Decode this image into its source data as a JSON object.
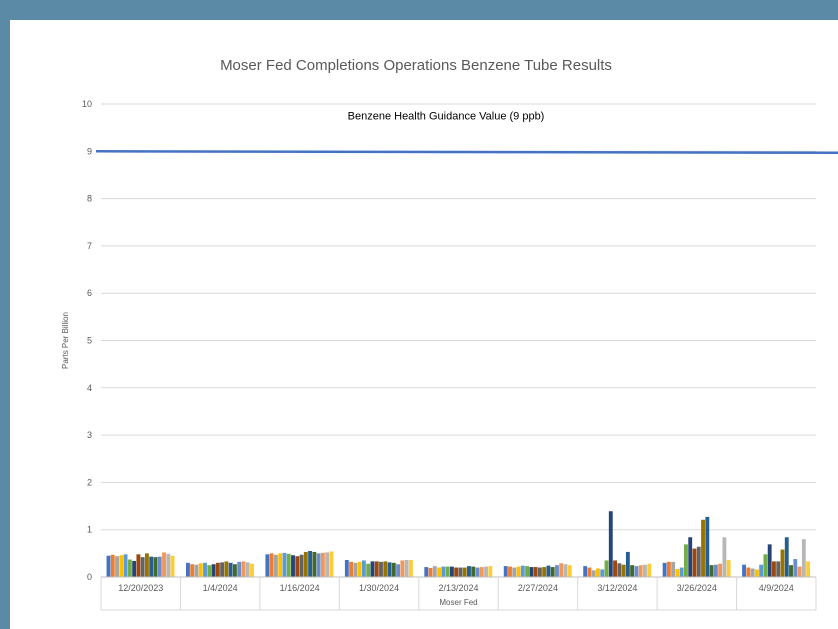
{
  "chart_data": {
    "type": "bar",
    "title": "Moser Fed Completions Operations Benzene Tube Results",
    "xlabel": "Moser Fed",
    "ylabel": "Parts Per Billion",
    "ylim": [
      0,
      10
    ],
    "yticks": [
      "0",
      "1",
      "2",
      "3",
      "4",
      "5",
      "6",
      "7",
      "8",
      "9",
      "10"
    ],
    "grid": true,
    "legend": "none",
    "categories": [
      "12/20/2023",
      "1/4/2024",
      "1/16/2024",
      "1/30/2024",
      "2/13/2024",
      "2/27/2024",
      "3/12/2024",
      "3/26/2024",
      "4/9/2024"
    ],
    "series": [
      {
        "color": "#4472C4",
        "values": [
          0.45,
          0.3,
          0.48,
          0.36,
          0.21,
          0.23,
          0.23,
          0.3,
          0.26
        ]
      },
      {
        "color": "#ED7D31",
        "values": [
          0.47,
          0.27,
          0.5,
          0.32,
          0.19,
          0.22,
          0.2,
          0.32,
          0.2
        ]
      },
      {
        "color": "#A5A5A5",
        "values": [
          0.44,
          0.26,
          0.47,
          0.3,
          0.23,
          0.2,
          0.14,
          0.32,
          0.18
        ]
      },
      {
        "color": "#FFC000",
        "values": [
          0.46,
          0.29,
          0.5,
          0.32,
          0.2,
          0.22,
          0.18,
          0.17,
          0.16
        ]
      },
      {
        "color": "#5B9BD5",
        "values": [
          0.48,
          0.3,
          0.51,
          0.35,
          0.22,
          0.24,
          0.16,
          0.2,
          0.26
        ]
      },
      {
        "color": "#70AD47",
        "values": [
          0.37,
          0.25,
          0.49,
          0.28,
          0.22,
          0.23,
          0.35,
          0.69,
          0.48
        ]
      },
      {
        "color": "#264478",
        "values": [
          0.34,
          0.27,
          0.46,
          0.33,
          0.22,
          0.21,
          1.39,
          0.84,
          0.69
        ]
      },
      {
        "color": "#9E480E",
        "values": [
          0.48,
          0.3,
          0.44,
          0.33,
          0.2,
          0.21,
          0.35,
          0.6,
          0.33
        ]
      },
      {
        "color": "#636363",
        "values": [
          0.42,
          0.31,
          0.47,
          0.32,
          0.2,
          0.2,
          0.29,
          0.64,
          0.33
        ]
      },
      {
        "color": "#997300",
        "values": [
          0.5,
          0.33,
          0.53,
          0.33,
          0.2,
          0.21,
          0.26,
          1.21,
          0.58
        ]
      },
      {
        "color": "#255E91",
        "values": [
          0.43,
          0.3,
          0.55,
          0.31,
          0.23,
          0.24,
          0.53,
          1.27,
          0.84
        ]
      },
      {
        "color": "#43682B",
        "values": [
          0.42,
          0.27,
          0.53,
          0.3,
          0.22,
          0.21,
          0.25,
          0.25,
          0.25
        ]
      },
      {
        "color": "#698ED0",
        "values": [
          0.43,
          0.32,
          0.5,
          0.27,
          0.2,
          0.25,
          0.23,
          0.26,
          0.38
        ]
      },
      {
        "color": "#F1975A",
        "values": [
          0.52,
          0.33,
          0.51,
          0.35,
          0.21,
          0.29,
          0.25,
          0.28,
          0.22
        ]
      },
      {
        "color": "#B7B7B7",
        "values": [
          0.49,
          0.31,
          0.52,
          0.36,
          0.22,
          0.27,
          0.26,
          0.84,
          0.8
        ]
      },
      {
        "color": "#FFCD33",
        "values": [
          0.45,
          0.28,
          0.54,
          0.36,
          0.23,
          0.25,
          0.28,
          0.36,
          0.33
        ]
      }
    ],
    "reference_line": {
      "value": 9,
      "label": "Benzene Health Guidance Value (9 ppb)",
      "color": "#4472C4"
    }
  }
}
